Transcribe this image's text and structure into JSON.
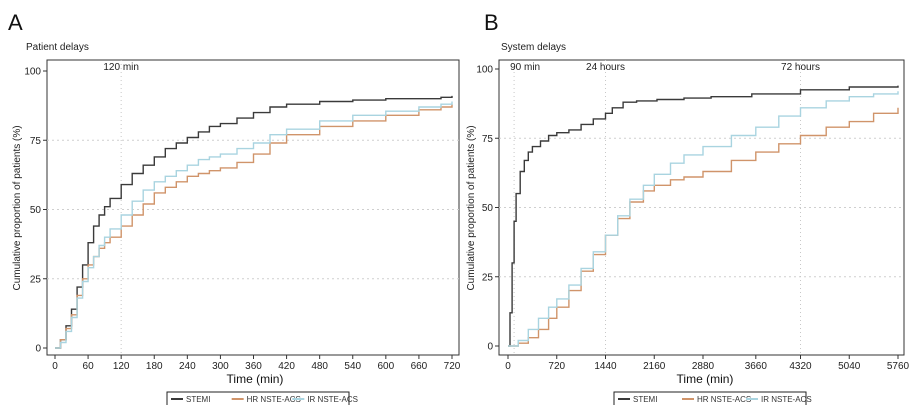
{
  "chart_data": [
    {
      "type": "line",
      "panel_label": "A",
      "title": "Patient delays",
      "xlabel": "Time (min)",
      "ylabel": "Cumulative proportion of patients (%)",
      "xlim": [
        0,
        720
      ],
      "ylim": [
        0,
        100
      ],
      "x_ticks": [
        0,
        60,
        120,
        180,
        240,
        300,
        360,
        420,
        480,
        540,
        600,
        660,
        720
      ],
      "y_ticks": [
        0,
        25,
        50,
        75,
        100
      ],
      "grid": "horizontal dashed at 25, 50, 75",
      "reference_lines": [
        {
          "x": 120,
          "label": "120 min"
        }
      ],
      "legend_position": "bottom",
      "series": [
        {
          "name": "STEMI",
          "color": "#3a3a3a",
          "x": [
            0,
            10,
            20,
            30,
            40,
            50,
            60,
            70,
            80,
            90,
            100,
            120,
            140,
            160,
            180,
            200,
            220,
            240,
            260,
            280,
            300,
            330,
            360,
            390,
            420,
            480,
            540,
            600,
            660,
            700,
            720
          ],
          "y": [
            0,
            3,
            8,
            14,
            22,
            30,
            38,
            44,
            48,
            51,
            54,
            59,
            63,
            66,
            69,
            72,
            74,
            76,
            78,
            80,
            81,
            83,
            85,
            87,
            88,
            89,
            89.5,
            90,
            90,
            90.5,
            91
          ]
        },
        {
          "name": "HR NSTE-ACS",
          "color": "#d0946a",
          "x": [
            0,
            10,
            20,
            30,
            40,
            50,
            60,
            70,
            80,
            90,
            100,
            120,
            140,
            160,
            180,
            200,
            220,
            240,
            260,
            280,
            300,
            330,
            360,
            390,
            420,
            480,
            540,
            600,
            660,
            700,
            720
          ],
          "y": [
            0,
            3,
            7,
            12,
            19,
            25,
            30,
            33,
            36,
            38,
            40,
            44,
            48,
            52,
            56,
            58,
            60,
            62,
            63,
            64,
            65,
            67,
            70,
            74,
            77,
            80,
            82,
            84,
            86,
            87,
            88
          ]
        },
        {
          "name": "IR NSTE-ACS",
          "color": "#a9d4e0",
          "x": [
            0,
            10,
            20,
            30,
            40,
            50,
            60,
            70,
            80,
            90,
            100,
            120,
            140,
            160,
            180,
            200,
            220,
            240,
            260,
            280,
            300,
            330,
            360,
            390,
            420,
            480,
            540,
            600,
            660,
            700,
            720
          ],
          "y": [
            0,
            2,
            6,
            11,
            18,
            24,
            29,
            33,
            37,
            40,
            43,
            48,
            53,
            57,
            60,
            62,
            64,
            66,
            68,
            69,
            70,
            72,
            74,
            77,
            79,
            82,
            84,
            85.5,
            87,
            88,
            89
          ]
        }
      ]
    },
    {
      "type": "line",
      "panel_label": "B",
      "title": "System delays",
      "xlabel": "Time (min)",
      "ylabel": "Cumulative proportion of patients (%)",
      "xlim": [
        0,
        5760
      ],
      "ylim": [
        0,
        100
      ],
      "x_ticks": [
        0,
        720,
        1440,
        2160,
        2880,
        3660,
        4320,
        5040,
        5760
      ],
      "y_ticks": [
        0,
        25,
        50,
        75,
        100
      ],
      "grid": "horizontal dashed at 25, 50, 75",
      "reference_lines": [
        {
          "x": 90,
          "label": "90 min"
        },
        {
          "x": 1440,
          "label": "24 hours"
        },
        {
          "x": 4320,
          "label": "72 hours"
        }
      ],
      "legend_position": "bottom",
      "series": [
        {
          "name": "STEMI",
          "color": "#3a3a3a",
          "x": [
            0,
            30,
            60,
            90,
            120,
            180,
            240,
            300,
            360,
            480,
            600,
            720,
            900,
            1080,
            1260,
            1440,
            1540,
            1700,
            1900,
            2200,
            2600,
            3000,
            3600,
            4320,
            5040,
            5760
          ],
          "y": [
            0,
            12,
            30,
            45,
            55,
            63,
            67,
            70,
            72,
            74,
            76,
            77,
            78,
            80,
            82,
            84,
            86,
            88,
            88.5,
            89,
            89.5,
            90,
            91,
            92.5,
            93.5,
            94
          ]
        },
        {
          "name": "HR NSTE-ACS",
          "color": "#d0946a",
          "x": [
            0,
            150,
            300,
            450,
            600,
            720,
            900,
            1080,
            1260,
            1440,
            1620,
            1800,
            2000,
            2160,
            2400,
            2600,
            2880,
            3300,
            3660,
            4000,
            4320,
            4700,
            5040,
            5400,
            5760
          ],
          "y": [
            0,
            1,
            3,
            6,
            10,
            14,
            20,
            27,
            33,
            40,
            46,
            52,
            56,
            58,
            60,
            61,
            63,
            67,
            70,
            73,
            76,
            79,
            81,
            84,
            86
          ]
        },
        {
          "name": "IR NSTE-ACS",
          "color": "#a9d4e0",
          "x": [
            0,
            150,
            300,
            450,
            600,
            720,
            900,
            1080,
            1260,
            1440,
            1620,
            1800,
            2000,
            2160,
            2400,
            2600,
            2880,
            3300,
            3660,
            4000,
            4320,
            4700,
            5040,
            5400,
            5760
          ],
          "y": [
            0,
            2,
            6,
            10,
            14,
            17,
            22,
            28,
            34,
            40,
            47,
            53,
            58,
            62,
            66,
            69,
            72,
            76,
            79,
            83,
            86,
            88.5,
            90,
            91,
            92
          ]
        }
      ]
    }
  ]
}
